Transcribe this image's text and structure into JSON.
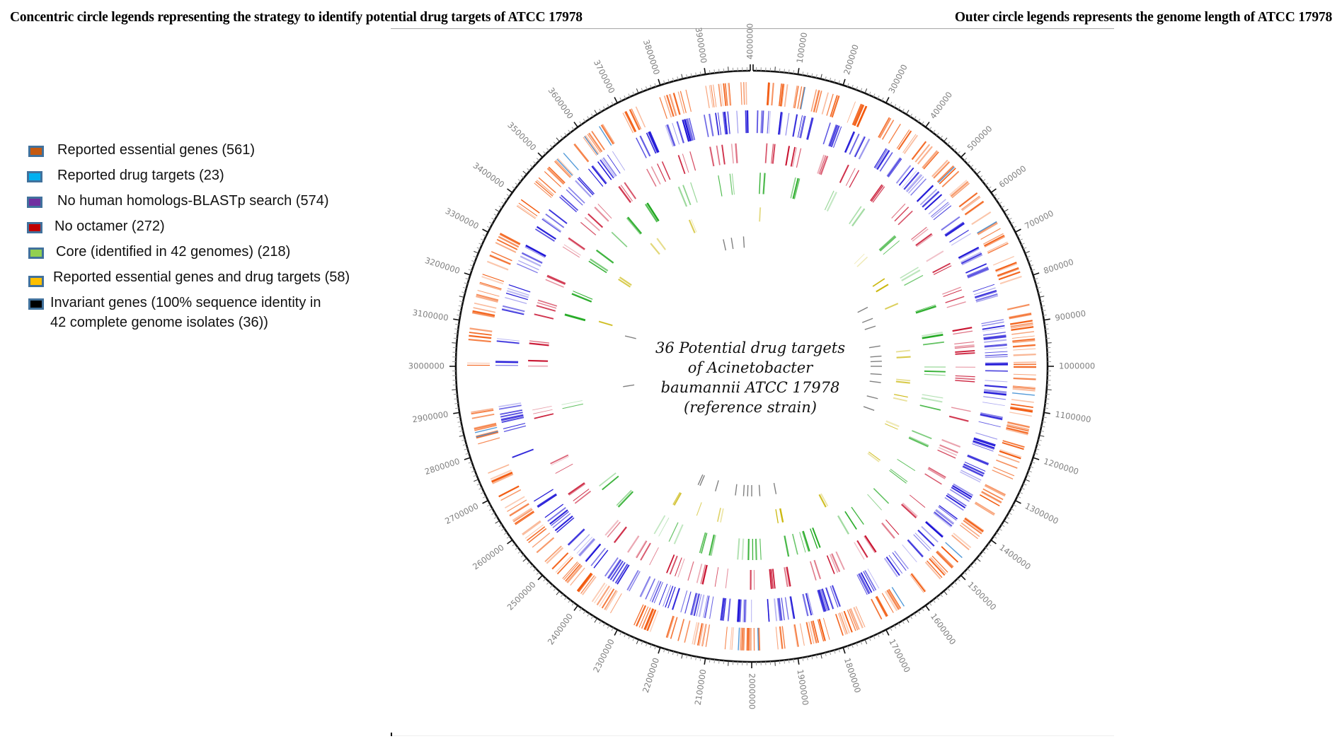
{
  "header": {
    "left_title": "Concentric circle legends representing the strategy to identify potential drug targets of ATCC 17978",
    "right_title": "Outer circle legends represents the genome length of ATCC 17978"
  },
  "legend": {
    "items": [
      {
        "label": "Reported essential genes (561)",
        "color": "#c55a11"
      },
      {
        "label": "Reported drug targets (23)",
        "color": "#00b0f0"
      },
      {
        "label": "No human homologs-BLASTp search  (574)",
        "color": "#7030a0"
      },
      {
        "label": "No octamer (272)",
        "color": "#c00000"
      },
      {
        "label": "Core (identified in 42 genomes) (218)",
        "color": "#92d050"
      },
      {
        "label": "Reported essential genes and drug targets (58)",
        "color": "#ffc000"
      },
      {
        "label": "Invariant genes (100% sequence identity in",
        "label_line2": "42 complete genome isolates (36))",
        "color": "#000000"
      }
    ]
  },
  "center_label": {
    "lines": [
      "36 Potential drug targets",
      "of Acinetobacter",
      "baumannii ATCC 17978",
      "(reference strain)"
    ]
  },
  "chart_data": {
    "type": "circular-genome-map",
    "title": "36 Potential drug targets of Acinetobacter baumannii ATCC 17978 (reference strain)",
    "genome_length": 4000000,
    "orientation": "0 at top, increasing clockwise",
    "tick_labels": [
      "4000000",
      "100000",
      "200000",
      "300000",
      "400000",
      "500000",
      "600000",
      "700000",
      "800000",
      "900000",
      "1000000",
      "1100000",
      "1200000",
      "1300000",
      "1400000",
      "1500000",
      "1600000",
      "1700000",
      "1800000",
      "1900000",
      "2000000",
      "2100000",
      "2200000",
      "2300000",
      "2400000",
      "2500000",
      "2600000",
      "2700000",
      "2800000",
      "2900000",
      "3000000",
      "3100000",
      "3200000",
      "3300000",
      "3400000",
      "3500000",
      "3600000",
      "3700000",
      "3800000",
      "3900000"
    ],
    "major_tick_interval": 100000,
    "minor_tick_interval": 10000,
    "tick_color": "#000000",
    "tick_label_color": "#7f7f7f",
    "rings": [
      {
        "name": "Reported essential genes",
        "count": 561,
        "color": "#f2580c",
        "order_from_outside": 1,
        "clusters": [
          [
            30000,
            60000
          ],
          [
            60000,
            130000
          ],
          [
            140000,
            200000
          ],
          [
            230000,
            290000
          ],
          [
            320000,
            380000
          ],
          [
            390000,
            460000
          ],
          [
            480000,
            560000
          ],
          [
            580000,
            640000
          ],
          [
            660000,
            720000
          ],
          [
            740000,
            800000
          ],
          [
            850000,
            1000000
          ],
          [
            1000000,
            1160000
          ],
          [
            1180000,
            1260000
          ],
          [
            1290000,
            1360000
          ],
          [
            1380000,
            1450000
          ],
          [
            1460000,
            1540000
          ],
          [
            1560000,
            1600000
          ],
          [
            1640000,
            1700000
          ],
          [
            1720000,
            1800000
          ],
          [
            1820000,
            1960000
          ],
          [
            1980000,
            2080000
          ],
          [
            2100000,
            2200000
          ],
          [
            2220000,
            2300000
          ],
          [
            2320000,
            2420000
          ],
          [
            2440000,
            2520000
          ],
          [
            2540000,
            2600000
          ],
          [
            2620000,
            2700000
          ],
          [
            2720000,
            2760000
          ],
          [
            2820000,
            2900000
          ],
          [
            3000000,
            3010000
          ],
          [
            3060000,
            3090000
          ],
          [
            3120000,
            3220000
          ],
          [
            3240000,
            3320000
          ],
          [
            3360000,
            3400000
          ],
          [
            3440000,
            3530000
          ],
          [
            3560000,
            3650000
          ],
          [
            3680000,
            3740000
          ],
          [
            3780000,
            3860000
          ],
          [
            3880000,
            3960000
          ],
          [
            3975000,
            3995000
          ]
        ]
      },
      {
        "name": "Reported drug targets",
        "count": 23,
        "color": "#3f8fd4",
        "order_from_outside": 1,
        "note": "overlaid on the essential-gene ring",
        "positions": [
          120000,
          505000,
          660000,
          1065000,
          1470000,
          1640000,
          1985000,
          2030000,
          2840000,
          2850000,
          3520000,
          3540000,
          3600000,
          3640000
        ]
      },
      {
        "name": "No human homologs-BLASTp search",
        "count": 574,
        "color": "#1a10d6",
        "order_from_outside": 2,
        "clusters": [
          [
            10000,
            80000
          ],
          [
            90000,
            160000
          ],
          [
            170000,
            230000
          ],
          [
            260000,
            320000
          ],
          [
            330000,
            400000
          ],
          [
            420000,
            480000
          ],
          [
            500000,
            580000
          ],
          [
            600000,
            660000
          ],
          [
            680000,
            760000
          ],
          [
            780000,
            830000
          ],
          [
            870000,
            980000
          ],
          [
            990000,
            1100000
          ],
          [
            1120000,
            1220000
          ],
          [
            1240000,
            1300000
          ],
          [
            1330000,
            1440000
          ],
          [
            1460000,
            1560000
          ],
          [
            1580000,
            1620000
          ],
          [
            1660000,
            1720000
          ],
          [
            1760000,
            1860000
          ],
          [
            1880000,
            1960000
          ],
          [
            1990000,
            2080000
          ],
          [
            2100000,
            2180000
          ],
          [
            2200000,
            2290000
          ],
          [
            2310000,
            2400000
          ],
          [
            2420000,
            2520000
          ],
          [
            2540000,
            2600000
          ],
          [
            2620000,
            2650000
          ],
          [
            2760000,
            2780000
          ],
          [
            2820000,
            2900000
          ],
          [
            3000000,
            3020000
          ],
          [
            3060000,
            3080000
          ],
          [
            3140000,
            3220000
          ],
          [
            3260000,
            3320000
          ],
          [
            3360000,
            3420000
          ],
          [
            3460000,
            3530000
          ],
          [
            3560000,
            3640000
          ],
          [
            3680000,
            3740000
          ],
          [
            3780000,
            3860000
          ],
          [
            3880000,
            3990000
          ]
        ]
      },
      {
        "name": "No octamer",
        "count": 272,
        "color": "#c8102e",
        "order_from_outside": 3,
        "clusters": [
          [
            20000,
            70000
          ],
          [
            100000,
            160000
          ],
          [
            200000,
            240000
          ],
          [
            280000,
            330000
          ],
          [
            380000,
            430000
          ],
          [
            470000,
            520000
          ],
          [
            560000,
            620000
          ],
          [
            650000,
            720000
          ],
          [
            760000,
            820000
          ],
          [
            880000,
            990000
          ],
          [
            1000000,
            1080000
          ],
          [
            1110000,
            1180000
          ],
          [
            1220000,
            1280000
          ],
          [
            1320000,
            1380000
          ],
          [
            1420000,
            1480000
          ],
          [
            1530000,
            1560000
          ],
          [
            1620000,
            1680000
          ],
          [
            1720000,
            1780000
          ],
          [
            1800000,
            1900000
          ],
          [
            1920000,
            2020000
          ],
          [
            2060000,
            2160000
          ],
          [
            2180000,
            2260000
          ],
          [
            2300000,
            2380000
          ],
          [
            2420000,
            2470000
          ],
          [
            2560000,
            2620000
          ],
          [
            2680000,
            2720000
          ],
          [
            2850000,
            2890000
          ],
          [
            3000000,
            3020000
          ],
          [
            3060000,
            3080000
          ],
          [
            3140000,
            3200000
          ],
          [
            3240000,
            3290000
          ],
          [
            3340000,
            3400000
          ],
          [
            3440000,
            3520000
          ],
          [
            3560000,
            3620000
          ],
          [
            3680000,
            3740000
          ],
          [
            3780000,
            3830000
          ],
          [
            3880000,
            3960000
          ]
        ]
      },
      {
        "name": "Core (identified in 42 genomes)",
        "count": 218,
        "color": "#1fa81f",
        "order_from_outside": 4,
        "clusters": [
          [
            20000,
            60000
          ],
          [
            120000,
            170000
          ],
          [
            260000,
            300000
          ],
          [
            380000,
            420000
          ],
          [
            500000,
            560000
          ],
          [
            640000,
            700000
          ],
          [
            760000,
            820000
          ],
          [
            880000,
            960000
          ],
          [
            1000000,
            1060000
          ],
          [
            1100000,
            1160000
          ],
          [
            1220000,
            1280000
          ],
          [
            1360000,
            1420000
          ],
          [
            1500000,
            1540000
          ],
          [
            1600000,
            1680000
          ],
          [
            1760000,
            1900000
          ],
          [
            1940000,
            2060000
          ],
          [
            2100000,
            2200000
          ],
          [
            2260000,
            2340000
          ],
          [
            2440000,
            2500000
          ],
          [
            2560000,
            2600000
          ],
          [
            2860000,
            2900000
          ],
          [
            3140000,
            3180000
          ],
          [
            3240000,
            3290000
          ],
          [
            3360000,
            3420000
          ],
          [
            3480000,
            3560000
          ],
          [
            3600000,
            3680000
          ],
          [
            3740000,
            3800000
          ],
          [
            3880000,
            3940000
          ]
        ]
      },
      {
        "name": "Reported essential genes and drug targets",
        "count": 58,
        "color": "#c8b400",
        "order_from_outside": 5,
        "clusters": [
          [
            30000,
            40000
          ],
          [
            500000,
            520000
          ],
          [
            620000,
            660000
          ],
          [
            740000,
            760000
          ],
          [
            900000,
            990000
          ],
          [
            1030000,
            1080000
          ],
          [
            1120000,
            1140000
          ],
          [
            1240000,
            1260000
          ],
          [
            1400000,
            1420000
          ],
          [
            1680000,
            1700000
          ],
          [
            1860000,
            1900000
          ],
          [
            2120000,
            2140000
          ],
          [
            2200000,
            2230000
          ],
          [
            2320000,
            2340000
          ],
          [
            3180000,
            3200000
          ],
          [
            3360000,
            3380000
          ],
          [
            3540000,
            3600000
          ],
          [
            3740000,
            3760000
          ]
        ]
      },
      {
        "name": "Invariant genes (100% sequence identity in 42 complete genome isolates)",
        "count": 36,
        "color": "#555555",
        "order_from_outside": 6,
        "positions": [
          3860000,
          3900000,
          3960000,
          700000,
          760000,
          800000,
          900000,
          950000,
          975000,
          1000000,
          1040000,
          1080000,
          1160000,
          1220000,
          1880000,
          1960000,
          2000000,
          2020000,
          2040000,
          2080000,
          2180000,
          2260000,
          2270000,
          2900000,
          3150000
        ]
      }
    ]
  }
}
